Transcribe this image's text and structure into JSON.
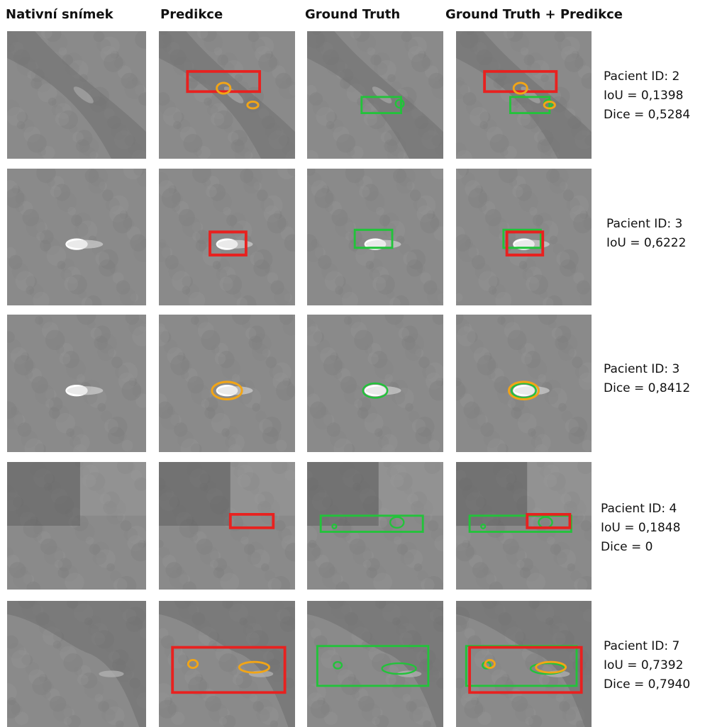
{
  "headers": {
    "native": "Nativní snímek",
    "prediction": "Predikce",
    "ground_truth": "Ground Truth",
    "combined": "Ground Truth + Predikce"
  },
  "rows": [
    {
      "lines": [
        "Pacient ID: 2",
        "IoU = 0,1398",
        "Dice = 0,5284"
      ]
    },
    {
      "lines": [
        "Pacient ID: 3",
        "IoU = 0,6222"
      ]
    },
    {
      "lines": [
        "Pacient ID: 3",
        "Dice = 0,8412"
      ]
    },
    {
      "lines": [
        "Pacient ID: 4",
        "IoU = 0,1848",
        "Dice = 0"
      ]
    },
    {
      "lines": [
        "Pacient ID: 7",
        "IoU = 0,7392",
        "Dice = 0,7940"
      ]
    }
  ],
  "colors": {
    "prediction_box": "#e8211f",
    "prediction_mask": "#f2a516",
    "ground_truth": "#22c33a",
    "tissue": "#8a8a8a"
  }
}
